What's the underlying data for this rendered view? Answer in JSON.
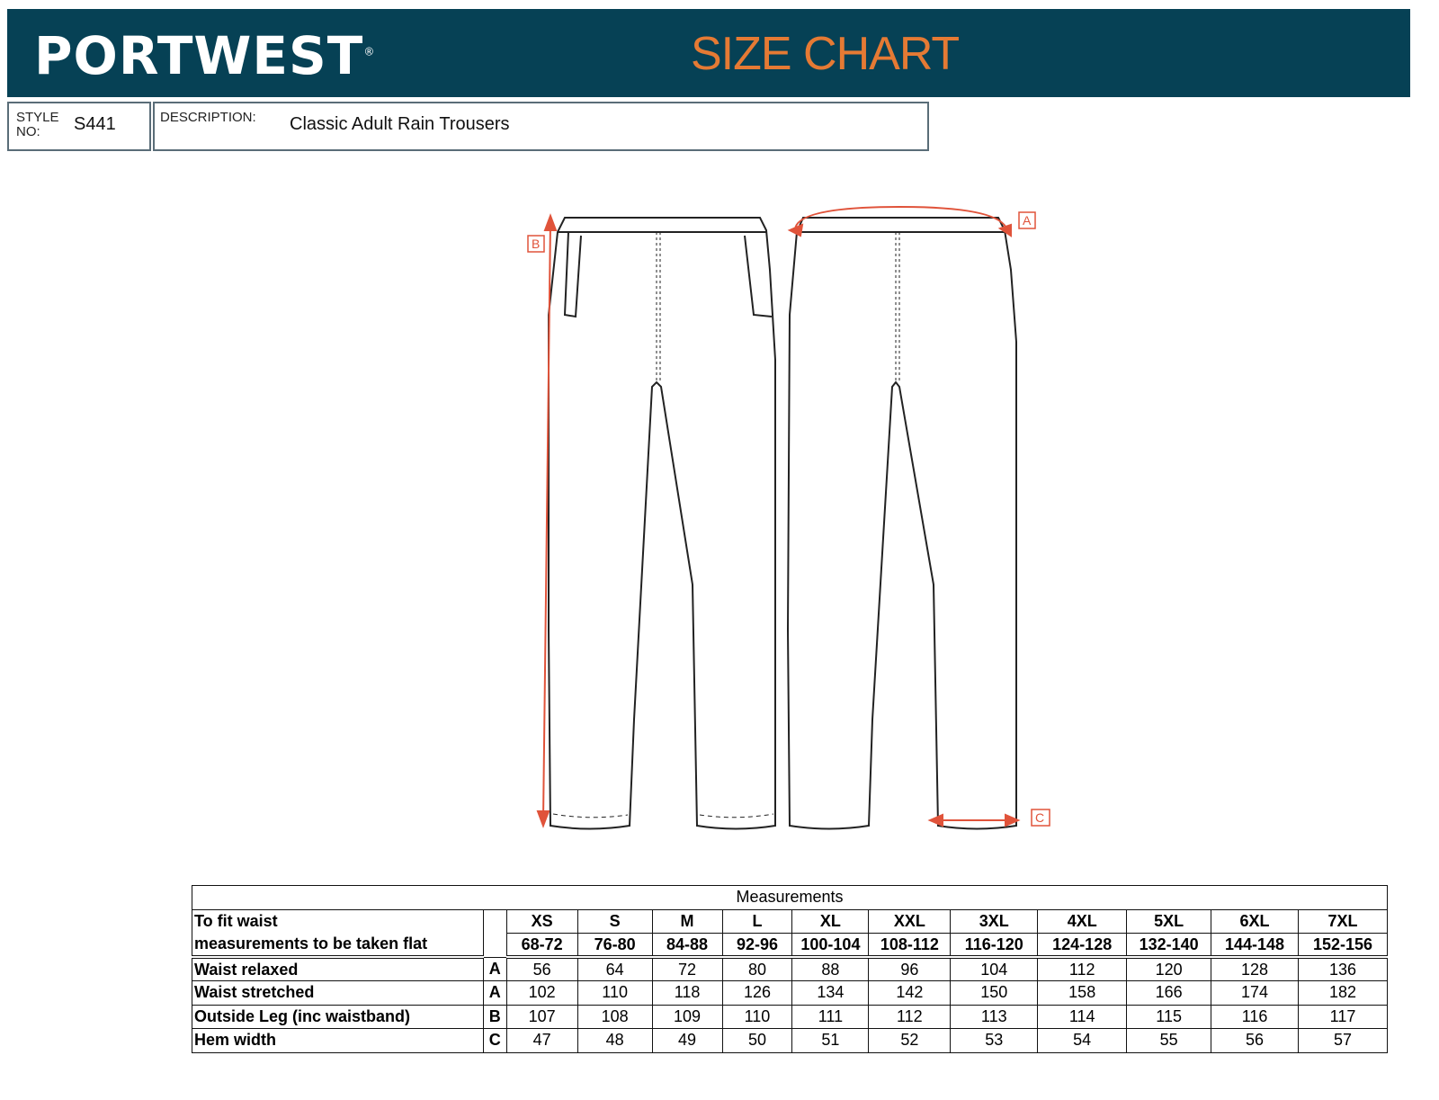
{
  "header": {
    "brand": "PORTWEST",
    "registered": "®",
    "title": "SIZE CHART",
    "brand_color": "#064155",
    "accent_color": "#e57a34"
  },
  "info": {
    "style_label": "STYLE NO:",
    "style_value": "S441",
    "description_label": "DESCRIPTION:",
    "description_value": "Classic Adult Rain Trousers"
  },
  "diagram": {
    "labels": [
      "A",
      "B",
      "C"
    ],
    "measure_color": "#e0533a"
  },
  "table": {
    "caption": "Measurements",
    "header_label_1": "To fit waist",
    "header_label_2": "measurements to be taken flat",
    "sizes": [
      "XS",
      "S",
      "M",
      "L",
      "XL",
      "XXL",
      "3XL",
      "4XL",
      "5XL",
      "6XL",
      "7XL"
    ],
    "fit_waist": [
      "68-72",
      "76-80",
      "84-88",
      "92-96",
      "100-104",
      "108-112",
      "116-120",
      "124-128",
      "132-140",
      "144-148",
      "152-156"
    ],
    "rows": [
      {
        "label": "Waist relaxed",
        "code": "A",
        "values": [
          "56",
          "64",
          "72",
          "80",
          "88",
          "96",
          "104",
          "112",
          "120",
          "128",
          "136"
        ]
      },
      {
        "label": "Waist stretched",
        "code": "A",
        "values": [
          "102",
          "110",
          "118",
          "126",
          "134",
          "142",
          "150",
          "158",
          "166",
          "174",
          "182"
        ]
      },
      {
        "label": "Outside Leg (inc waistband)",
        "code": "B",
        "values": [
          "107",
          "108",
          "109",
          "110",
          "111",
          "112",
          "113",
          "114",
          "115",
          "116",
          "117"
        ]
      },
      {
        "label": "Hem width",
        "code": "C",
        "values": [
          "47",
          "48",
          "49",
          "50",
          "51",
          "52",
          "53",
          "54",
          "55",
          "56",
          "57"
        ]
      }
    ]
  }
}
